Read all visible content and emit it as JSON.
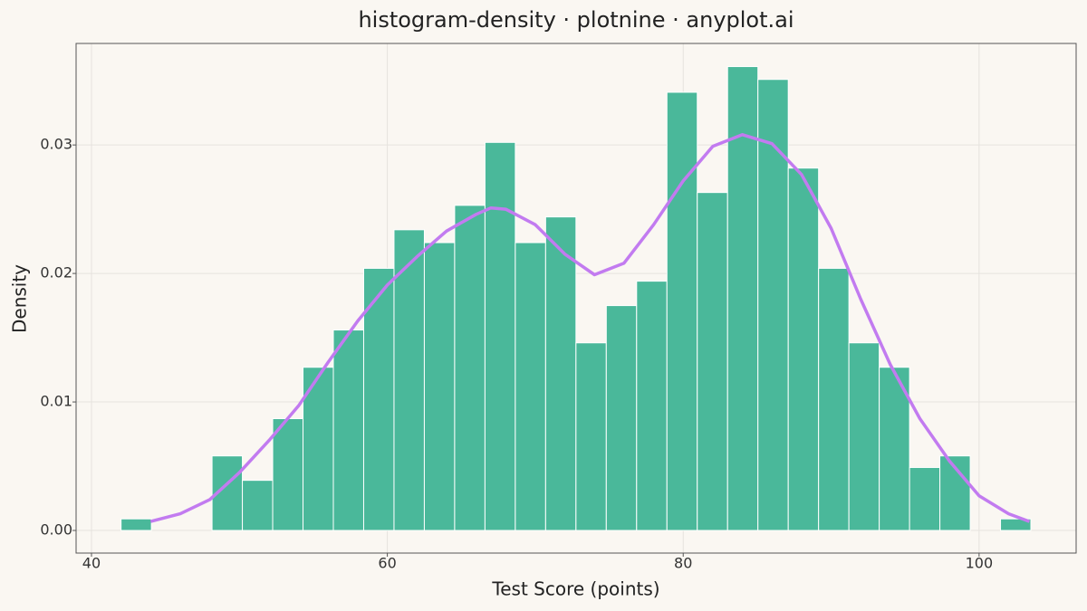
{
  "chart_data": {
    "type": "histogram",
    "title": "histogram-density · plotnine · anyplot.ai",
    "x_label": "Test Score (points)",
    "y_label": "Density",
    "bins": [
      42.0,
      44.05,
      46.1,
      48.15,
      50.2,
      52.25,
      54.3,
      56.35,
      58.4,
      60.45,
      62.5,
      64.55,
      66.6,
      68.65,
      70.7,
      72.75,
      74.8,
      76.85,
      78.9,
      80.95,
      83.0,
      85.05,
      87.1,
      89.15,
      91.2,
      93.25,
      95.3,
      97.35,
      99.4,
      101.45,
      103.5
    ],
    "values": [
      0.0009,
      0,
      0,
      0.0058,
      0.0039,
      0.0087,
      0.0127,
      0.0156,
      0.0204,
      0.0234,
      0.0224,
      0.0253,
      0.0302,
      0.0224,
      0.0244,
      0.0146,
      0.0175,
      0.0194,
      0.0341,
      0.0263,
      0.0361,
      0.0351,
      0.0282,
      0.0204,
      0.0146,
      0.0127,
      0.0049,
      0.0058,
      0,
      0.0009
    ],
    "color": "#4ab89a",
    "density": {
      "color": "#c27bf0",
      "x": [
        44,
        46,
        48,
        50,
        52,
        54,
        56,
        58,
        60,
        62,
        64,
        66,
        67,
        68,
        70,
        72,
        74,
        76,
        78,
        80,
        82,
        84,
        86,
        88,
        90,
        92,
        94,
        96,
        98,
        100,
        102,
        103.4
      ],
      "values": [
        0.0007,
        0.0013,
        0.0024,
        0.0045,
        0.007,
        0.0097,
        0.0131,
        0.0163,
        0.0191,
        0.0213,
        0.0233,
        0.0246,
        0.0251,
        0.025,
        0.0238,
        0.0215,
        0.0199,
        0.0208,
        0.0238,
        0.0272,
        0.0299,
        0.0308,
        0.0301,
        0.0277,
        0.0235,
        0.018,
        0.0129,
        0.0087,
        0.0054,
        0.0027,
        0.0013,
        0.0007
      ]
    },
    "xlim": [
      38.96,
      106.56
    ],
    "ylim": [
      -0.00176,
      0.0379
    ],
    "xticks": [
      40,
      60,
      80,
      100
    ],
    "yticks": [
      {
        "value": 0,
        "label": "0.00"
      },
      0.01,
      0.02,
      0.03
    ],
    "grid": true
  }
}
